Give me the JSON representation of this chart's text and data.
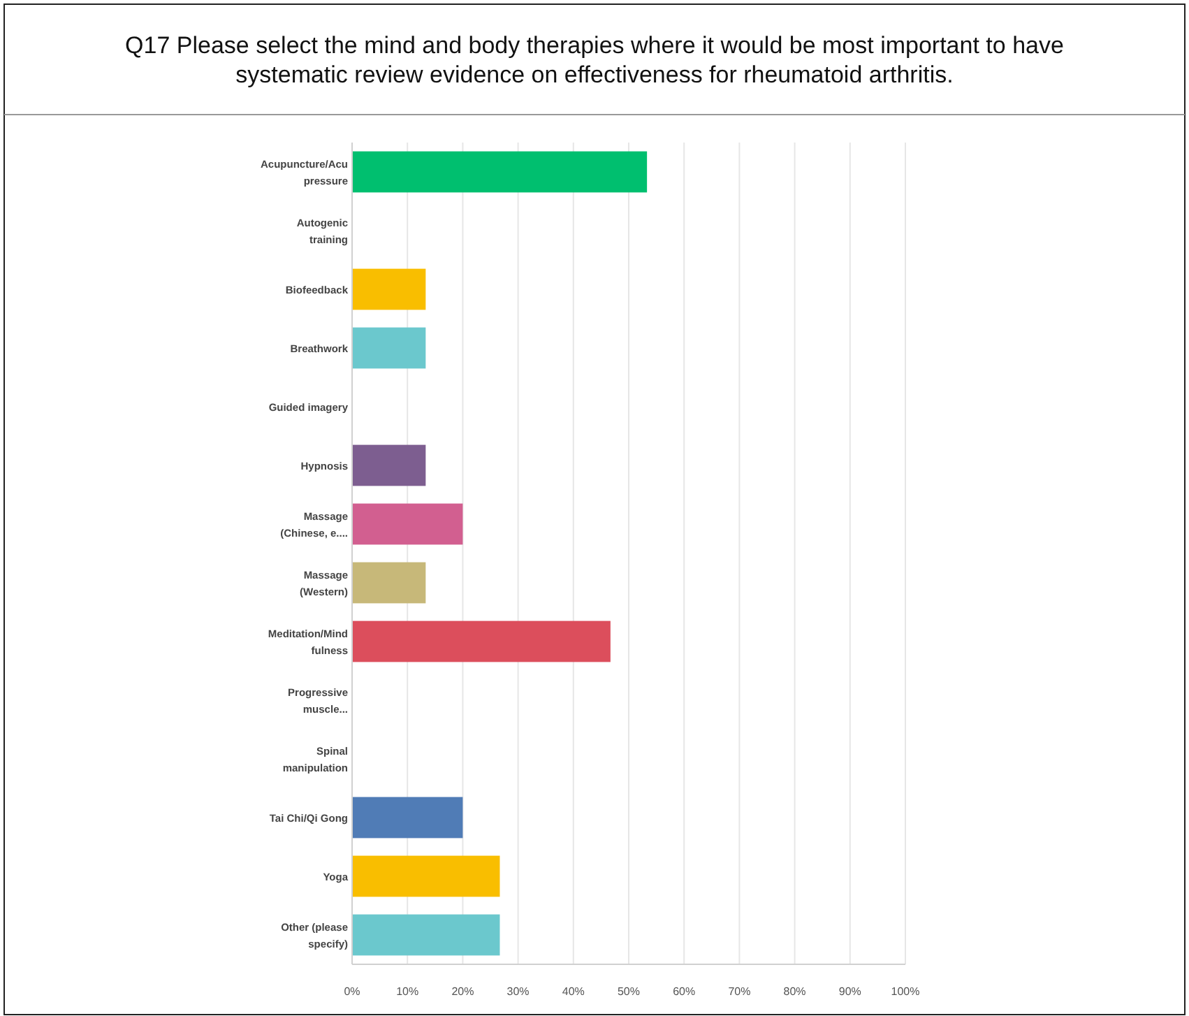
{
  "chart_data": {
    "type": "bar",
    "orientation": "horizontal",
    "title": "Q17 Please select the mind and body therapies where it would be most important to have systematic review evidence on effectiveness for rheumatoid arthritis.",
    "categories": [
      "Acupuncture/Acupressure",
      "Autogenic training",
      "Biofeedback",
      "Breathwork",
      "Guided imagery",
      "Hypnosis",
      "Massage (Chinese, e....",
      "Massage (Western)",
      "Meditation/Mindfulness",
      "Progressive muscle...",
      "Spinal manipulation",
      "Tai Chi/Qi Gong",
      "Yoga",
      "Other (please specify)"
    ],
    "values": [
      53.3,
      0,
      13.3,
      13.3,
      0,
      13.3,
      20,
      13.3,
      46.7,
      0,
      0,
      20,
      26.7,
      26.7
    ],
    "colors": [
      "#00bf6f",
      "#6bc8cd",
      "#f9be00",
      "#6bc8cd",
      "#a8a8a8",
      "#7d5e90",
      "#d25f90",
      "#c7b879",
      "#dc4e5c",
      "#a8a8a8",
      "#a8a8a8",
      "#507cb6",
      "#f9be00",
      "#6bc8cd"
    ],
    "xlim": [
      0,
      100
    ],
    "xticks": [
      {
        "value": 0,
        "label": "0%"
      },
      {
        "value": 10,
        "label": "10%"
      },
      {
        "value": 20,
        "label": "20%"
      },
      {
        "value": 30,
        "label": "30%"
      },
      {
        "value": 40,
        "label": "40%"
      },
      {
        "value": 50,
        "label": "50%"
      },
      {
        "value": 60,
        "label": "60%"
      },
      {
        "value": 70,
        "label": "70%"
      },
      {
        "value": 80,
        "label": "80%"
      },
      {
        "value": 90,
        "label": "90%"
      },
      {
        "value": 100,
        "label": "100%"
      }
    ],
    "grid": "x"
  }
}
